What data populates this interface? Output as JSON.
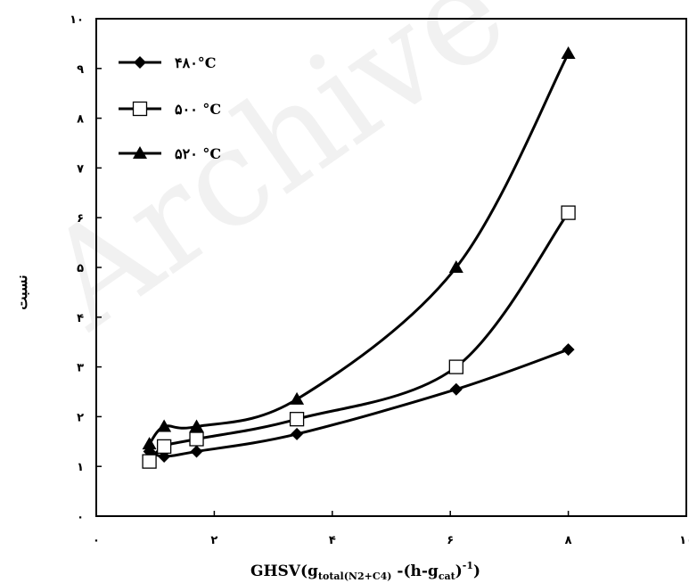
{
  "watermark": "Archive",
  "chart_data": {
    "type": "line",
    "xlabel": {
      "main": "GHSV(g",
      "sub1": "total(N2+C4)",
      "mid": " -(h-g",
      "sub2": "cat",
      "close": ")",
      "sup": "-1",
      "end": ")"
    },
    "ylabel": "نسبت",
    "xlim": [
      0,
      10
    ],
    "ylim": [
      0,
      10
    ],
    "x_ticks": [
      0,
      2,
      4,
      6,
      8,
      10
    ],
    "x_tick_labels": [
      "۰",
      "۲",
      "۴",
      "۶",
      "۸",
      "۱۰"
    ],
    "y_ticks": [
      0,
      1,
      2,
      3,
      4,
      5,
      6,
      7,
      8,
      9,
      10
    ],
    "y_tick_labels": [
      "۰",
      "۱",
      "۲",
      "۳",
      "۴",
      "۵",
      "۶",
      "۷",
      "۸",
      "۹",
      "۱۰"
    ],
    "grid": false,
    "legend_position": "top-left",
    "series": [
      {
        "name": "۴۸۰°C",
        "marker": "diamond",
        "color": "#000000",
        "x": [
          0.9,
          1.15,
          1.7,
          3.4,
          6.1,
          8.0
        ],
        "y": [
          1.3,
          1.2,
          1.3,
          1.65,
          2.55,
          3.35
        ]
      },
      {
        "name": "۵۰۰ °C",
        "marker": "square-open",
        "color": "#000000",
        "x": [
          0.9,
          1.15,
          1.7,
          3.4,
          6.1,
          8.0
        ],
        "y": [
          1.1,
          1.4,
          1.55,
          1.95,
          3.0,
          6.1
        ]
      },
      {
        "name": "۵۲۰ °C",
        "marker": "triangle",
        "color": "#000000",
        "x": [
          0.9,
          1.15,
          1.7,
          3.4,
          6.1,
          8.0
        ],
        "y": [
          1.45,
          1.8,
          1.8,
          2.35,
          5.0,
          9.3
        ]
      }
    ]
  }
}
